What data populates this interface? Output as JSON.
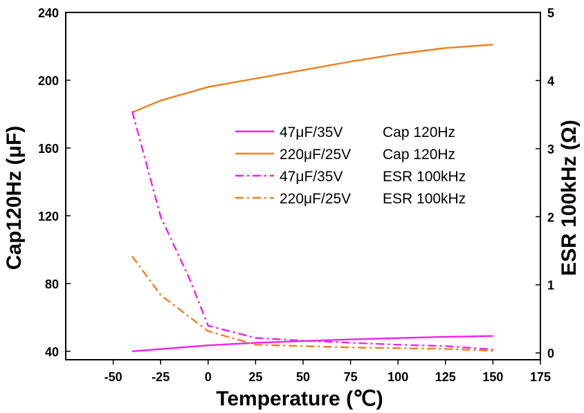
{
  "chart_data": {
    "type": "line",
    "xlabel": "Temperature (℃)",
    "ylabel_left": "Cap120Hz (μF)",
    "ylabel_right": "ESR 100kHz (Ω)",
    "xlim": [
      -75,
      175
    ],
    "ylim_left": [
      35,
      240
    ],
    "ylim_right": [
      -0.1,
      5
    ],
    "x_ticks": [
      -50,
      -25,
      0,
      25,
      50,
      75,
      100,
      125,
      150,
      175
    ],
    "y_left_ticks": [
      40,
      80,
      120,
      160,
      200,
      240
    ],
    "y_right_ticks": [
      0,
      1,
      2,
      3,
      4,
      5
    ],
    "legend_position": "center",
    "series": [
      {
        "name": "47μF/35V",
        "measure": "Cap 120Hz",
        "axis": "left",
        "color": "#ee22ee",
        "style": "solid",
        "x": [
          -40,
          0,
          25,
          50,
          75,
          100,
          125,
          150
        ],
        "values": [
          40,
          43.5,
          45,
          46,
          47,
          47.8,
          48.5,
          49
        ]
      },
      {
        "name": "220μF/25V",
        "measure": "Cap 120Hz",
        "axis": "left",
        "color": "#f07d1c",
        "style": "solid",
        "x": [
          -40,
          -25,
          0,
          25,
          50,
          75,
          100,
          125,
          150
        ],
        "values": [
          181,
          188,
          196,
          201,
          206,
          211,
          215.5,
          219,
          221
        ]
      },
      {
        "name": "47μF/35V",
        "measure": "ESR 100kHz",
        "axis": "right",
        "color": "#ee22ee",
        "style": "dashdot",
        "x": [
          -40,
          -25,
          -10,
          0,
          25,
          50,
          75,
          100,
          125,
          150
        ],
        "values": [
          3.55,
          2.0,
          1.1,
          0.4,
          0.22,
          0.18,
          0.15,
          0.12,
          0.1,
          0.05
        ]
      },
      {
        "name": "220μF/25V",
        "measure": "ESR 100kHz",
        "axis": "right",
        "color": "#f07d1c",
        "style": "dashdot",
        "x": [
          -40,
          -25,
          0,
          25,
          50,
          75,
          100,
          125,
          150
        ],
        "values": [
          1.42,
          0.85,
          0.32,
          0.12,
          0.1,
          0.08,
          0.07,
          0.06,
          0.03
        ]
      }
    ]
  }
}
